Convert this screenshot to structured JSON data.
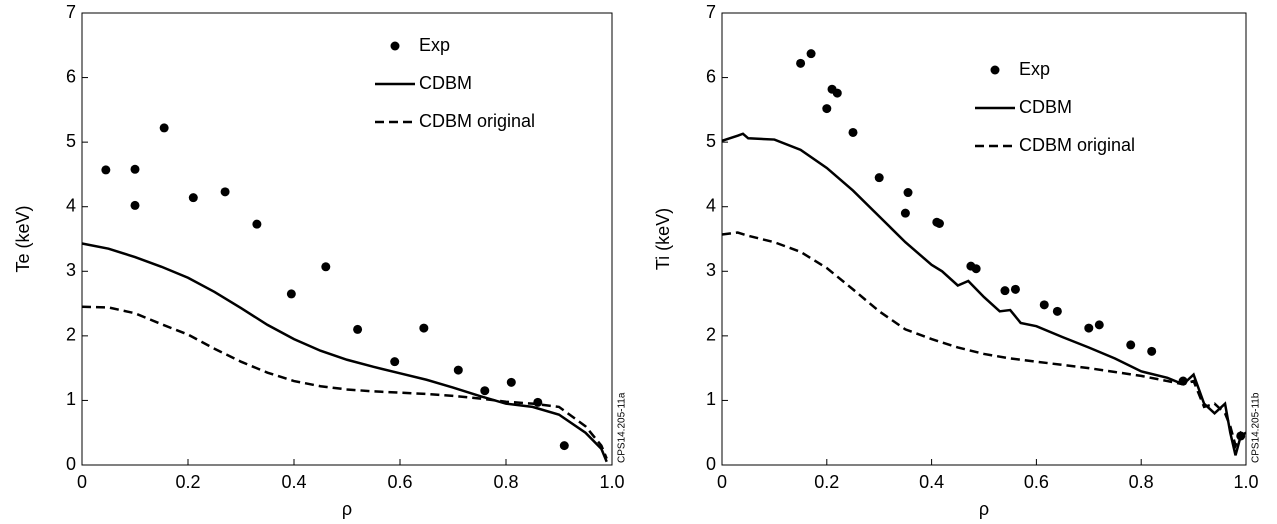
{
  "chart_data": [
    {
      "type": "line",
      "ylabel": "Te (keV)",
      "xlabel": "ρ",
      "annotation": "CPS14.205-11a",
      "xlim": [
        0,
        1
      ],
      "ylim": [
        0,
        7
      ],
      "xticks": [
        0,
        0.2,
        0.4,
        0.6,
        0.8,
        {
          "value": 1,
          "label": "1.0"
        }
      ],
      "yticks": [
        0,
        1,
        2,
        3,
        4,
        5,
        6,
        7
      ],
      "series": [
        {
          "name": "Exp",
          "style": "markers",
          "color": "#000000",
          "x": [
            0.045,
            0.1,
            0.1,
            0.155,
            0.21,
            0.27,
            0.33,
            0.395,
            0.46,
            0.52,
            0.59,
            0.645,
            0.71,
            0.76,
            0.81,
            0.86,
            0.91
          ],
          "values": [
            4.57,
            4.58,
            4.02,
            5.22,
            4.14,
            4.23,
            3.73,
            2.65,
            3.07,
            2.1,
            1.6,
            2.12,
            1.47,
            1.15,
            1.28,
            0.97,
            0.3
          ]
        },
        {
          "name": "CDBM",
          "style": "solid",
          "color": "#000000",
          "x": [
            0,
            0.05,
            0.1,
            0.15,
            0.2,
            0.25,
            0.3,
            0.35,
            0.4,
            0.45,
            0.5,
            0.55,
            0.6,
            0.65,
            0.7,
            0.75,
            0.8,
            0.85,
            0.9,
            0.95,
            0.98,
            0.99
          ],
          "values": [
            3.43,
            3.35,
            3.22,
            3.07,
            2.9,
            2.68,
            2.43,
            2.17,
            1.95,
            1.77,
            1.63,
            1.52,
            1.42,
            1.32,
            1.2,
            1.07,
            0.95,
            0.9,
            0.78,
            0.5,
            0.25,
            0.05
          ]
        },
        {
          "name": "CDBM original",
          "style": "dashed",
          "color": "#000000",
          "x": [
            0,
            0.05,
            0.1,
            0.15,
            0.2,
            0.25,
            0.3,
            0.35,
            0.4,
            0.45,
            0.5,
            0.55,
            0.6,
            0.65,
            0.7,
            0.75,
            0.8,
            0.85,
            0.9,
            0.95,
            0.98,
            0.99
          ],
          "values": [
            2.45,
            2.44,
            2.35,
            2.18,
            2.02,
            1.8,
            1.6,
            1.43,
            1.3,
            1.22,
            1.17,
            1.14,
            1.12,
            1.1,
            1.07,
            1.03,
            0.98,
            0.95,
            0.9,
            0.6,
            0.3,
            0.1
          ]
        }
      ]
    },
    {
      "type": "line",
      "ylabel": "Ti (keV)",
      "xlabel": "ρ",
      "annotation": "CPS14.205-11b",
      "xlim": [
        0,
        1
      ],
      "ylim": [
        0,
        7
      ],
      "xticks": [
        0,
        0.2,
        0.4,
        0.6,
        0.8,
        {
          "value": 1,
          "label": "1.0"
        }
      ],
      "yticks": [
        0,
        1,
        2,
        3,
        4,
        5,
        6,
        7
      ],
      "series": [
        {
          "name": "Exp",
          "style": "markers",
          "color": "#000000",
          "x": [
            0.15,
            0.17,
            0.2,
            0.21,
            0.22,
            0.25,
            0.3,
            0.35,
            0.355,
            0.41,
            0.415,
            0.475,
            0.485,
            0.54,
            0.56,
            0.615,
            0.64,
            0.7,
            0.72,
            0.78,
            0.82,
            0.88,
            0.99
          ],
          "values": [
            6.22,
            6.37,
            5.52,
            5.82,
            5.76,
            5.15,
            4.45,
            3.9,
            4.22,
            3.76,
            3.74,
            3.08,
            3.04,
            2.7,
            2.72,
            2.48,
            2.38,
            2.12,
            2.17,
            1.86,
            1.76,
            1.3,
            0.45
          ]
        },
        {
          "name": "CDBM",
          "style": "solid",
          "color": "#000000",
          "x": [
            0,
            0.03,
            0.04,
            0.05,
            0.1,
            0.15,
            0.2,
            0.25,
            0.3,
            0.35,
            0.4,
            0.42,
            0.45,
            0.47,
            0.5,
            0.53,
            0.55,
            0.57,
            0.6,
            0.65,
            0.7,
            0.75,
            0.8,
            0.85,
            0.88,
            0.9,
            0.92,
            0.94,
            0.96,
            0.97,
            0.98,
            0.99,
            1
          ],
          "values": [
            5.02,
            5.1,
            5.13,
            5.06,
            5.04,
            4.88,
            4.6,
            4.25,
            3.85,
            3.45,
            3.1,
            3.0,
            2.78,
            2.85,
            2.6,
            2.38,
            2.4,
            2.2,
            2.15,
            1.98,
            1.82,
            1.65,
            1.45,
            1.35,
            1.25,
            1.4,
            0.95,
            0.8,
            0.95,
            0.5,
            0.15,
            0.45,
            0.5
          ]
        },
        {
          "name": "CDBM original",
          "style": "dashed",
          "color": "#000000",
          "x": [
            0,
            0.03,
            0.05,
            0.1,
            0.15,
            0.2,
            0.25,
            0.3,
            0.35,
            0.4,
            0.45,
            0.5,
            0.55,
            0.6,
            0.65,
            0.7,
            0.75,
            0.8,
            0.85,
            0.88,
            0.9,
            0.92,
            0.94,
            0.96,
            0.97,
            0.98,
            0.99,
            1
          ],
          "values": [
            3.57,
            3.6,
            3.55,
            3.45,
            3.3,
            3.05,
            2.72,
            2.38,
            2.1,
            1.95,
            1.82,
            1.72,
            1.65,
            1.6,
            1.55,
            1.5,
            1.44,
            1.38,
            1.3,
            1.25,
            1.3,
            0.9,
            0.95,
            0.8,
            0.6,
            0.3,
            0.5,
            0.45
          ]
        }
      ]
    }
  ]
}
